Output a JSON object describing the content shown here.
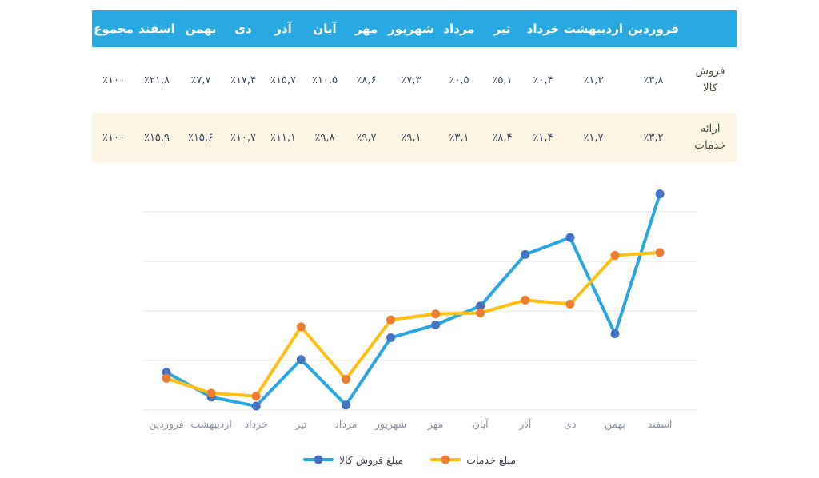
{
  "table": {
    "corner_label": "",
    "months": [
      "فروردین",
      "اردیبهشت",
      "خرداد",
      "تیر",
      "مرداد",
      "شهریور",
      "مهر",
      "آبان",
      "آذر",
      "دی",
      "بهمن",
      "اسفند"
    ],
    "total_header": "مجموع",
    "rows": [
      {
        "label_lines": [
          "فروش",
          "کالا"
        ],
        "values": [
          "٪۳,۸",
          "٪۱,۳",
          "٪۰,۴",
          "٪۵,۱",
          "٪۰,۵",
          "٪۷,۳",
          "٪۸,۶",
          "٪۱۰,۵",
          "٪۱۵,۷",
          "٪۱۷,۴",
          "٪۷,۷",
          "٪۲۱,۸"
        ],
        "total": "٪۱۰۰",
        "bg": "#ffffff"
      },
      {
        "label_lines": [
          "ارائه",
          "خدمات"
        ],
        "values": [
          "٪۳,۲",
          "٪۱,۷",
          "٪۱,۴",
          "٪۸,۴",
          "٪۳,۱",
          "٪۹,۱",
          "٪۹,۷",
          "٪۹,۸",
          "٪۱۱,۱",
          "٪۱۰,۷",
          "٪۱۵,۶",
          "٪۱۵,۹"
        ],
        "total": "٪۱۰۰",
        "bg": "#fdf5e3"
      }
    ],
    "header_bg": "#29a9e1",
    "header_text_color": "#ffffff",
    "value_text_color": "#3a4a63",
    "label_text_color": "#46503f"
  },
  "chart_data": {
    "type": "line",
    "title": "",
    "xlabel": "",
    "ylabel": "",
    "categories": [
      "فروردین",
      "اردیبهشت",
      "خرداد",
      "تیر",
      "مرداد",
      "شهریور",
      "مهر",
      "آبان",
      "آذر",
      "دی",
      "بهمن",
      "اسفند"
    ],
    "series": [
      {
        "name": "مبلغ فروش کالا",
        "values": [
          3.8,
          1.3,
          0.4,
          5.1,
          0.5,
          7.3,
          8.6,
          10.5,
          15.7,
          17.4,
          7.7,
          21.8
        ],
        "line_color": "#2aa7e2",
        "marker_color": "#4472c4"
      },
      {
        "name": "مبلغ خدمات",
        "values": [
          3.2,
          1.7,
          1.4,
          8.4,
          3.1,
          9.1,
          9.7,
          9.8,
          11.1,
          10.7,
          15.6,
          15.9
        ],
        "line_color": "#ffc012",
        "marker_color": "#ed7d31"
      }
    ],
    "ylim": [
      0,
      22
    ],
    "gridline_values": [
      0,
      5,
      10,
      15,
      20
    ],
    "grid": true,
    "grid_color": "#e4e4e7",
    "axis_label_color": "#8a93a3",
    "legend_position": "bottom"
  }
}
